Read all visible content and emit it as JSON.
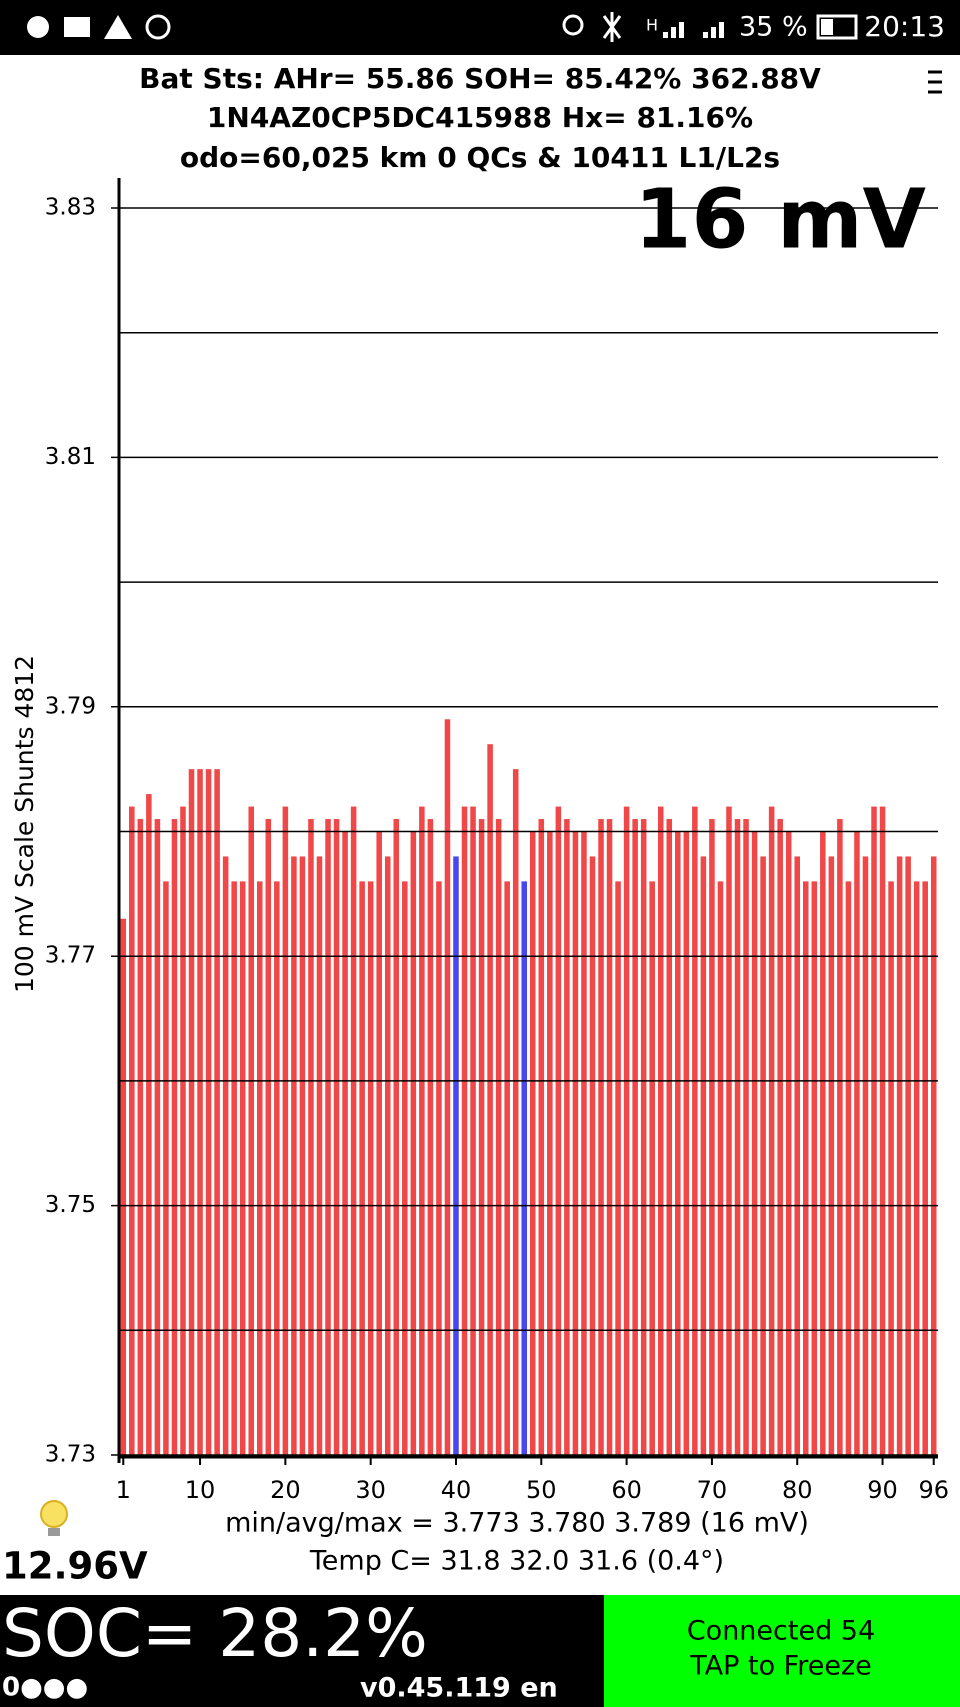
{
  "status_bar": {
    "network": "H",
    "battery": "35 %",
    "time": "20:13"
  },
  "header": {
    "line1": "Bat Sts:  AHr= 55.86  SOH= 85.42%   362.88V",
    "line2": "1N4AZ0CP5DC415988   Hx= 81.16%",
    "line3": "odo=60,025 km 0 QCs & 10411 L1/L2s"
  },
  "chart_data": {
    "type": "bar",
    "annotation": "16 mV",
    "y_label": "100 mV Scale   Shunts 4812",
    "categories": [
      1,
      2,
      3,
      4,
      5,
      6,
      7,
      8,
      9,
      10,
      11,
      12,
      13,
      14,
      15,
      16,
      17,
      18,
      19,
      20,
      21,
      22,
      23,
      24,
      25,
      26,
      27,
      28,
      29,
      30,
      31,
      32,
      33,
      34,
      35,
      36,
      37,
      38,
      39,
      40,
      41,
      42,
      43,
      44,
      45,
      46,
      47,
      48,
      49,
      50,
      51,
      52,
      53,
      54,
      55,
      56,
      57,
      58,
      59,
      60,
      61,
      62,
      63,
      64,
      65,
      66,
      67,
      68,
      69,
      70,
      71,
      72,
      73,
      74,
      75,
      76,
      77,
      78,
      79,
      80,
      81,
      82,
      83,
      84,
      85,
      86,
      87,
      88,
      89,
      90,
      91,
      92,
      93,
      94,
      95,
      96
    ],
    "values": [
      3.773,
      3.782,
      3.781,
      3.783,
      3.781,
      3.776,
      3.781,
      3.782,
      3.785,
      3.785,
      3.785,
      3.785,
      3.778,
      3.776,
      3.776,
      3.782,
      3.776,
      3.781,
      3.776,
      3.782,
      3.778,
      3.778,
      3.781,
      3.778,
      3.781,
      3.781,
      3.78,
      3.782,
      3.776,
      3.776,
      3.78,
      3.778,
      3.781,
      3.776,
      3.78,
      3.782,
      3.781,
      3.776,
      3.789,
      3.778,
      3.782,
      3.782,
      3.781,
      3.787,
      3.781,
      3.776,
      3.785,
      3.776,
      3.78,
      3.781,
      3.78,
      3.782,
      3.781,
      3.78,
      3.78,
      3.778,
      3.781,
      3.781,
      3.776,
      3.782,
      3.781,
      3.781,
      3.776,
      3.782,
      3.781,
      3.78,
      3.78,
      3.782,
      3.778,
      3.781,
      3.776,
      3.782,
      3.781,
      3.781,
      3.78,
      3.778,
      3.782,
      3.781,
      3.78,
      3.778,
      3.776,
      3.776,
      3.78,
      3.778,
      3.781,
      3.776,
      3.78,
      3.778,
      3.782,
      3.782,
      3.776,
      3.778,
      3.778,
      3.776,
      3.776,
      3.778
    ],
    "color": "#f04848",
    "highlight_color": "#4848f0",
    "highlighted": [
      40,
      48
    ],
    "ylim": [
      3.73,
      3.83
    ],
    "yticks": [
      3.73,
      3.75,
      3.77,
      3.79,
      3.81,
      3.83
    ],
    "minor_yticks": [
      3.74,
      3.76,
      3.78,
      3.8,
      3.82
    ],
    "grid": true,
    "xticks": [
      1,
      10,
      20,
      30,
      40,
      50,
      60,
      70,
      80,
      90,
      96
    ],
    "stats": "min/avg/max = 3.773 3.780 3.789  (16 mV)",
    "temps": "Temp C= 31.8  32.0  31.6  (0.4°)"
  },
  "footer": {
    "aux_voltage": "12.96V",
    "soc": "SOC= 28.2%",
    "indicator": "0●●●",
    "version": "v0.45.119 en",
    "connection": "Connected 54",
    "action": "TAP to Freeze"
  }
}
